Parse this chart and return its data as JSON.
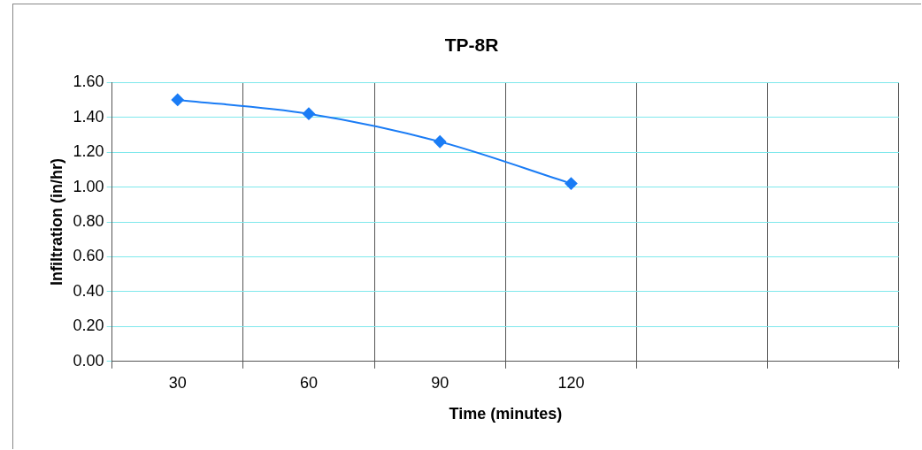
{
  "chart_data": {
    "type": "line",
    "title": "TP-8R",
    "xlabel": "Time (minutes)",
    "ylabel": "Infiltration (in/hr)",
    "categories": [
      "30",
      "60",
      "90",
      "120",
      null,
      null
    ],
    "series": [
      {
        "color": "#1a7cf5",
        "values": [
          1.5,
          1.42,
          1.26,
          1.02,
          null,
          null
        ]
      }
    ],
    "ylim": [
      0,
      1.6
    ],
    "yticks": [
      {
        "value": 0,
        "label": "0.00"
      },
      {
        "value": 0.2,
        "label": "0.20"
      },
      {
        "value": 0.4,
        "label": "0.40"
      },
      {
        "value": 0.6,
        "label": "0.60"
      },
      {
        "value": 0.8,
        "label": "0.80"
      },
      {
        "value": 1.0,
        "label": "1.00"
      },
      {
        "value": 1.2,
        "label": "1.20"
      },
      {
        "value": 1.4,
        "label": "1.40"
      },
      {
        "value": 1.6,
        "label": "1.60"
      }
    ],
    "grid": true,
    "legend": false,
    "marker": "diamond",
    "line_style": "solid"
  }
}
